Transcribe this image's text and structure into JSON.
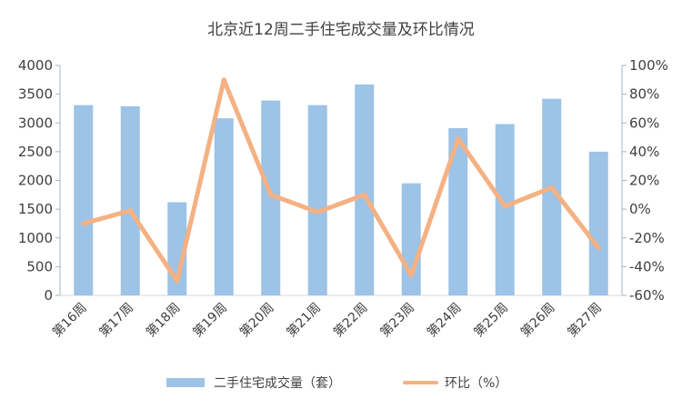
{
  "chart_data": {
    "type": "bar+line",
    "title": "北京近12周二手住宅成交量及环比情况",
    "categories": [
      "第16周",
      "第17周",
      "第18周",
      "第19周",
      "第20周",
      "第21周",
      "第22周",
      "第23周",
      "第24周",
      "第25周",
      "第26周",
      "第27周"
    ],
    "series": [
      {
        "name": "二手住宅成交量（套）",
        "type": "bar",
        "axis": "left",
        "color": "#9DC3E6",
        "values": [
          3310,
          3290,
          1620,
          3080,
          3390,
          3310,
          3670,
          1950,
          2910,
          2980,
          3420,
          2500
        ]
      },
      {
        "name": "环比（%）",
        "type": "line",
        "axis": "right",
        "color": "#F4B183",
        "values": [
          -10,
          -1,
          -50,
          90,
          10,
          -2,
          10,
          -46,
          49,
          2,
          15,
          -27
        ]
      }
    ],
    "y_left": {
      "min": 0,
      "max": 4000,
      "step": 500,
      "ticks": [
        "0",
        "500",
        "1000",
        "1500",
        "2000",
        "2500",
        "3000",
        "3500",
        "4000"
      ]
    },
    "y_right": {
      "min": -60,
      "max": 100,
      "step": 20,
      "ticks": [
        "-60%",
        "-40%",
        "-20%",
        "0%",
        "20%",
        "40%",
        "60%",
        "80%",
        "100%"
      ]
    },
    "legend": {
      "position": "bottom",
      "items": [
        "二手住宅成交量（套）",
        "环比（%）"
      ]
    },
    "grid": false
  }
}
